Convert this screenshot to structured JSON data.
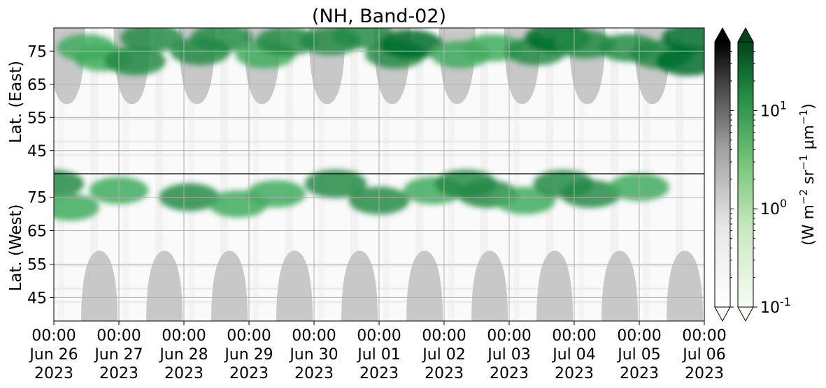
{
  "chart_data": {
    "type": "heatmap",
    "title": "(NH, Band-02)",
    "x_axis": {
      "range": [
        "2023-06-26T00:00",
        "2023-07-06T00:00"
      ],
      "ticks": [
        {
          "value": "2023-06-26T00:00",
          "time": "00:00",
          "date": "Jun 26",
          "year": "2023"
        },
        {
          "value": "2023-06-27T00:00",
          "time": "00:00",
          "date": "Jun 27",
          "year": "2023"
        },
        {
          "value": "2023-06-28T00:00",
          "time": "00:00",
          "date": "Jun 28",
          "year": "2023"
        },
        {
          "value": "2023-06-29T00:00",
          "time": "00:00",
          "date": "Jun 29",
          "year": "2023"
        },
        {
          "value": "2023-06-30T00:00",
          "time": "00:00",
          "date": "Jun 30",
          "year": "2023"
        },
        {
          "value": "2023-07-01T00:00",
          "time": "00:00",
          "date": "Jul 01",
          "year": "2023"
        },
        {
          "value": "2023-07-02T00:00",
          "time": "00:00",
          "date": "Jul 02",
          "year": "2023"
        },
        {
          "value": "2023-07-03T00:00",
          "time": "00:00",
          "date": "Jul 03",
          "year": "2023"
        },
        {
          "value": "2023-07-04T00:00",
          "time": "00:00",
          "date": "Jul 04",
          "year": "2023"
        },
        {
          "value": "2023-07-05T00:00",
          "time": "00:00",
          "date": "Jul 05",
          "year": "2023"
        },
        {
          "value": "2023-07-06T00:00",
          "time": "00:00",
          "date": "Jul 06",
          "year": "2023"
        }
      ]
    },
    "y_axis": {
      "east": {
        "label": "Lat. (East)",
        "range": [
          38,
          82
        ],
        "ticks": [
          45,
          55,
          65,
          75
        ]
      },
      "west": {
        "label": "Lat. (West)",
        "range": [
          82,
          38
        ],
        "ticks": [
          75,
          65,
          55,
          45
        ]
      },
      "divider": "Lat. 82 (East/West boundary)"
    },
    "grid": true,
    "colorbars": [
      {
        "name": "gray",
        "scale": "log",
        "range": [
          0.1,
          50
        ],
        "extend": "both",
        "colors": [
          "#ffffff",
          "#000000"
        ]
      },
      {
        "name": "green",
        "scale": "log",
        "range": [
          0.1,
          50
        ],
        "extend": "both",
        "colors": [
          "#f7fcf5",
          "#00441b"
        ],
        "tick_labels": [
          {
            "base": "10",
            "exp": "-1",
            "value": 0.1
          },
          {
            "base": "10",
            "exp": "0",
            "value": 1
          },
          {
            "base": "10",
            "exp": "1",
            "value": 10
          }
        ],
        "label_parts": [
          "(W m",
          "−2",
          " sr",
          "−1",
          " μm",
          "−1",
          ")"
        ]
      }
    ],
    "night_mask": {
      "color": "#c8c8c8",
      "east_peaks": [
        "2023-06-26T04:48",
        "2023-06-27T04:48",
        "2023-06-28T04:48",
        "2023-06-29T04:48",
        "2023-06-30T04:48",
        "2023-07-01T04:48",
        "2023-07-02T04:48",
        "2023-07-03T04:48",
        "2023-07-04T04:48",
        "2023-07-05T04:48"
      ],
      "west_peaks": [
        "2023-06-26T16:48",
        "2023-06-27T16:48",
        "2023-06-28T16:48",
        "2023-06-29T16:48",
        "2023-06-30T16:48",
        "2023-07-01T16:48",
        "2023-07-02T16:48",
        "2023-07-03T16:48",
        "2023-07-04T16:48",
        "2023-07-05T16:48"
      ],
      "reach_lat": 59
    },
    "intensity_blobs": [
      {
        "t": "2023-06-26T12:00",
        "lat": 76,
        "side": "east",
        "value": 4
      },
      {
        "t": "2023-06-26T18:00",
        "lat": 73,
        "side": "east",
        "value": 3
      },
      {
        "t": "2023-06-27T06:00",
        "lat": 72,
        "side": "east",
        "value": 8
      },
      {
        "t": "2023-06-27T12:00",
        "lat": 79,
        "side": "east",
        "value": 12
      },
      {
        "t": "2023-06-28T06:00",
        "lat": 75,
        "side": "east",
        "value": 6
      },
      {
        "t": "2023-06-28T14:00",
        "lat": 79,
        "side": "east",
        "value": 10
      },
      {
        "t": "2023-06-29T06:00",
        "lat": 74,
        "side": "east",
        "value": 5
      },
      {
        "t": "2023-06-29T14:00",
        "lat": 78,
        "side": "east",
        "value": 12
      },
      {
        "t": "2023-06-30T06:00",
        "lat": 78,
        "side": "east",
        "value": 6
      },
      {
        "t": "2023-06-30T18:00",
        "lat": 80,
        "side": "east",
        "value": 8
      },
      {
        "t": "2023-07-01T06:00",
        "lat": 74,
        "side": "east",
        "value": 6
      },
      {
        "t": "2023-07-01T12:00",
        "lat": 77,
        "side": "east",
        "value": 14
      },
      {
        "t": "2023-07-02T06:00",
        "lat": 74,
        "side": "east",
        "value": 5
      },
      {
        "t": "2023-07-02T18:00",
        "lat": 76,
        "side": "east",
        "value": 4
      },
      {
        "t": "2023-07-03T10:00",
        "lat": 75,
        "side": "east",
        "value": 8
      },
      {
        "t": "2023-07-03T18:00",
        "lat": 79,
        "side": "east",
        "value": 30
      },
      {
        "t": "2023-07-04T04:00",
        "lat": 77,
        "side": "east",
        "value": 6
      },
      {
        "t": "2023-07-04T20:00",
        "lat": 76,
        "side": "east",
        "value": 6
      },
      {
        "t": "2023-07-05T08:00",
        "lat": 74,
        "side": "east",
        "value": 10
      },
      {
        "t": "2023-07-05T18:00",
        "lat": 72,
        "side": "east",
        "value": 20
      },
      {
        "t": "2023-07-05T20:00",
        "lat": 79,
        "side": "east",
        "value": 14
      },
      {
        "t": "2023-06-26T00:00",
        "lat": 79,
        "side": "west",
        "value": 6
      },
      {
        "t": "2023-06-26T06:00",
        "lat": 72,
        "side": "west",
        "value": 3
      },
      {
        "t": "2023-06-27T00:00",
        "lat": 77,
        "side": "west",
        "value": 4
      },
      {
        "t": "2023-06-28T02:00",
        "lat": 75,
        "side": "west",
        "value": 6
      },
      {
        "t": "2023-06-28T20:00",
        "lat": 73,
        "side": "west",
        "value": 4
      },
      {
        "t": "2023-06-29T10:00",
        "lat": 76,
        "side": "west",
        "value": 4
      },
      {
        "t": "2023-06-30T08:00",
        "lat": 79,
        "side": "west",
        "value": 10
      },
      {
        "t": "2023-07-01T00:00",
        "lat": 74,
        "side": "west",
        "value": 6
      },
      {
        "t": "2023-07-01T20:00",
        "lat": 77,
        "side": "west",
        "value": 5
      },
      {
        "t": "2023-07-02T08:00",
        "lat": 79,
        "side": "west",
        "value": 10
      },
      {
        "t": "2023-07-02T16:00",
        "lat": 76,
        "side": "west",
        "value": 6
      },
      {
        "t": "2023-07-03T06:00",
        "lat": 74,
        "side": "west",
        "value": 5
      },
      {
        "t": "2023-07-03T20:00",
        "lat": 79,
        "side": "west",
        "value": 6
      },
      {
        "t": "2023-07-04T06:00",
        "lat": 76,
        "side": "west",
        "value": 6
      },
      {
        "t": "2023-07-05T00:00",
        "lat": 78,
        "side": "west",
        "value": 5
      }
    ]
  }
}
